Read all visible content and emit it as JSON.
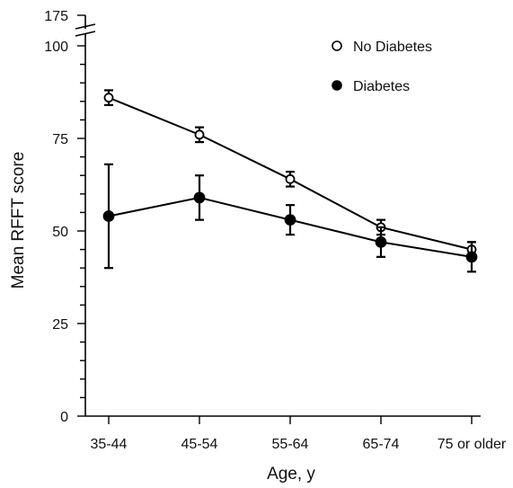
{
  "chart_data": {
    "type": "line",
    "title": "",
    "xlabel": "Age, y",
    "ylabel": "Mean RFFT score",
    "categories": [
      "35-44",
      "45-54",
      "55-64",
      "65-74",
      "75 or older"
    ],
    "ylim": [
      0,
      100
    ],
    "y_break": {
      "label": "175"
    },
    "y_ticks": [
      0,
      25,
      50,
      75,
      100
    ],
    "y_tick_labels": [
      "0",
      "25",
      "50",
      "75",
      "100"
    ],
    "grid": false,
    "legend_position": "top-right",
    "series": [
      {
        "name": "No Diabetes",
        "marker": "open-circle",
        "values": [
          86,
          76,
          64,
          51,
          45
        ],
        "err_low": [
          84,
          74,
          62,
          49,
          43
        ],
        "err_high": [
          88,
          78,
          66,
          53,
          47
        ]
      },
      {
        "name": "Diabetes",
        "marker": "filled-circle",
        "values": [
          54,
          59,
          53,
          47,
          43
        ],
        "err_low": [
          40,
          53,
          49,
          43,
          39
        ],
        "err_high": [
          68,
          65,
          57,
          51,
          47
        ]
      }
    ]
  }
}
